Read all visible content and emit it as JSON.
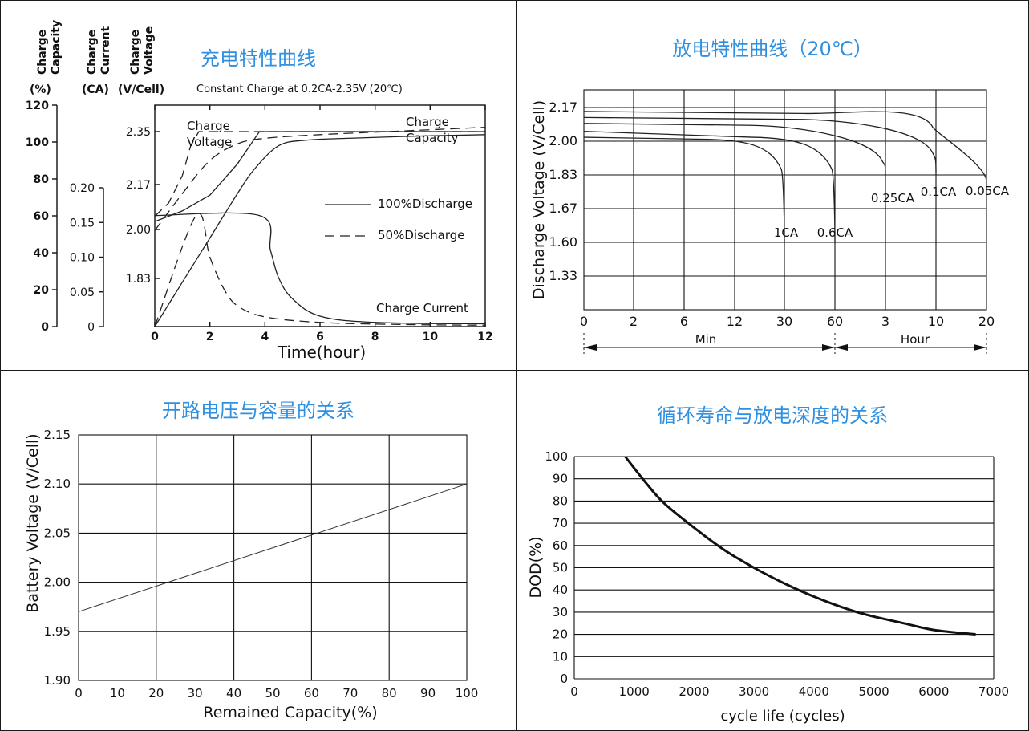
{
  "charge": {
    "title": "充电特性曲线",
    "condition": "Constant Charge at 0.2CA-2.35V  (20℃)",
    "header_capacity": [
      "Charge",
      "Capacity"
    ],
    "header_current": [
      "Charge",
      "Current"
    ],
    "header_voltage": [
      "Charge",
      "Voltage"
    ],
    "unit_capacity": "(%)",
    "unit_current": "(CA)",
    "unit_voltage": "(V/Cell)",
    "xlabel": "Time(hour)",
    "label_charge_voltage": [
      "Charge",
      "Voltage"
    ],
    "label_charge_capacity": [
      "Charge",
      "Capacity"
    ],
    "label_charge_current": "Charge Current",
    "legend_solid": "100%Discharge",
    "legend_dashed": "50%Discharge"
  },
  "discharge": {
    "title": "放电特性曲线（20℃）",
    "ylabel": "Discharge Voltage (V/Cell)",
    "min_label": "Min",
    "hour_label": "Hour"
  },
  "ocv": {
    "title": "开路电压与容量的关系",
    "ylabel": "Battery Voltage (V/Cell)",
    "xlabel": "Remained Capacity(%)"
  },
  "cycle": {
    "title": "循环寿命与放电深度的关系",
    "ylabel": "DOD(%)",
    "xlabel": "cycle life (cycles)"
  },
  "chart_data": [
    {
      "type": "line",
      "x_ticks": [
        "0",
        "2",
        "4",
        "6",
        "8",
        "10",
        "12"
      ],
      "capacity_ticks": [
        "120",
        "100",
        "80",
        "60",
        "40",
        "20",
        "0"
      ],
      "current_ticks": [
        "0.20",
        "0.15",
        "0.10",
        "0.05",
        "0"
      ],
      "voltage_ticks": [
        "2.35",
        "2.17",
        "2.00",
        "1.83"
      ],
      "series": [
        {
          "name": "100%Discharge",
          "style": "solid",
          "curve": "Charge Voltage",
          "points": [
            [
              0,
              2.03
            ],
            [
              1,
              2.07
            ],
            [
              2,
              2.13
            ],
            [
              3,
              2.24
            ],
            [
              3.8,
              2.35
            ],
            [
              12,
              2.35
            ]
          ]
        },
        {
          "name": "100%Discharge",
          "style": "solid",
          "curve": "Charge Capacity",
          "points": [
            [
              0,
              0
            ],
            [
              1,
              24
            ],
            [
              2,
              48
            ],
            [
              3,
              72
            ],
            [
              3.6,
              85
            ],
            [
              4.5,
              98
            ],
            [
              5.5,
              101
            ],
            [
              7,
              102
            ],
            [
              9,
              103
            ],
            [
              12,
              104
            ]
          ]
        },
        {
          "name": "100%Discharge",
          "style": "solid",
          "curve": "Charge Current",
          "points": [
            [
              0,
              0.16
            ],
            [
              3.8,
              0.16
            ],
            [
              4.2,
              0.11
            ],
            [
              4.5,
              0.07
            ],
            [
              5,
              0.04
            ],
            [
              6,
              0.015
            ],
            [
              8,
              0.006
            ],
            [
              12,
              0.004
            ]
          ]
        },
        {
          "name": "50%Discharge",
          "style": "dashed",
          "curve": "Charge Voltage",
          "points": [
            [
              0,
              2.05
            ],
            [
              0.5,
              2.1
            ],
            [
              1,
              2.2
            ],
            [
              1.3,
              2.3
            ],
            [
              1.6,
              2.35
            ],
            [
              12,
              2.35
            ]
          ]
        },
        {
          "name": "50%Discharge",
          "style": "dashed",
          "curve": "Charge Capacity",
          "points": [
            [
              0,
              52
            ],
            [
              1,
              72
            ],
            [
              2,
              90
            ],
            [
              3,
              99
            ],
            [
              4,
              102
            ],
            [
              6,
              104
            ],
            [
              9,
              106
            ],
            [
              12,
              108
            ]
          ]
        },
        {
          "name": "50%Discharge",
          "style": "dashed",
          "curve": "Charge Current",
          "points": [
            [
              0,
              0
            ],
            [
              1.5,
              0.16
            ],
            [
              2,
              0.1
            ],
            [
              2.5,
              0.055
            ],
            [
              3,
              0.03
            ],
            [
              4,
              0.014
            ],
            [
              6,
              0.006
            ],
            [
              9,
              0.003
            ],
            [
              12,
              0.002
            ]
          ]
        }
      ]
    },
    {
      "type": "line",
      "y_ticks": [
        "2.17",
        "2.00",
        "1.83",
        "1.67",
        "1.60",
        "1.33"
      ],
      "x_ticks": [
        "0",
        "2",
        "6",
        "12",
        "30",
        "60",
        "3",
        "10",
        "20"
      ],
      "series": [
        {
          "name": "1CA",
          "points": [
            [
              "0",
              2.02
            ],
            [
              "12",
              2.01
            ],
            [
              "30",
              1.86
            ],
            [
              "30",
              1.6
            ]
          ]
        },
        {
          "name": "0.6CA",
          "points": [
            [
              "0",
              2.05
            ],
            [
              "30",
              2.02
            ],
            [
              "60",
              1.86
            ],
            [
              "60",
              1.6
            ]
          ]
        },
        {
          "name": "0.25CA",
          "points": [
            [
              "0",
              2.09
            ],
            [
              "30",
              2.08
            ],
            [
              "3",
              1.9
            ],
            [
              "3",
              1.82
            ]
          ]
        },
        {
          "name": "0.1CA",
          "points": [
            [
              "0",
              2.12
            ],
            [
              "60",
              2.11
            ],
            [
              "10",
              1.94
            ],
            [
              "10",
              1.84
            ]
          ]
        },
        {
          "name": "0.05CA",
          "points": [
            [
              "0",
              2.15
            ],
            [
              "60",
              2.14
            ],
            [
              "10",
              2.07
            ],
            [
              "20",
              1.8
            ]
          ]
        }
      ]
    },
    {
      "type": "line",
      "x": [
        0,
        100
      ],
      "y": [
        1.97,
        2.1
      ],
      "x_ticks": [
        "0",
        "10",
        "20",
        "30",
        "40",
        "50",
        "60",
        "70",
        "80",
        "90",
        "100"
      ],
      "y_ticks": [
        "2.15",
        "2.10",
        "2.05",
        "2.00",
        "1.95",
        "1.90"
      ],
      "xlim": [
        0,
        100
      ],
      "ylim": [
        1.9,
        2.15
      ],
      "grid": true
    },
    {
      "type": "line",
      "x": [
        850,
        1200,
        1500,
        2000,
        2500,
        3000,
        3500,
        4000,
        4600,
        5000,
        5500,
        6000,
        6700
      ],
      "y": [
        100,
        88,
        79,
        68,
        58,
        50,
        43,
        37,
        31,
        28,
        25,
        22,
        20
      ],
      "x_ticks": [
        "0",
        "1000",
        "2000",
        "3000",
        "4000",
        "5000",
        "6000",
        "7000"
      ],
      "y_ticks": [
        "100",
        "90",
        "80",
        "70",
        "60",
        "50",
        "40",
        "30",
        "20",
        "10",
        "0"
      ],
      "xlim": [
        0,
        7000
      ],
      "ylim": [
        0,
        100
      ],
      "grid": true
    }
  ]
}
